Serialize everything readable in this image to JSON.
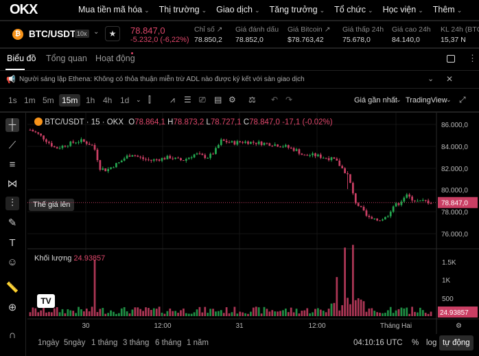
{
  "nav": {
    "logo": "OKX",
    "items": [
      "Mua tiền mã hóa",
      "Thị trường",
      "Giao dịch",
      "Tăng trưởng",
      "Tổ chức",
      "Học viện",
      "Thêm"
    ]
  },
  "ticker": {
    "pair": "BTC/USDT",
    "leverage": "10x",
    "price": "78.847,0",
    "change": "-5.232,0 (-6,22%)",
    "stats": [
      {
        "label": "Chỉ số ↗",
        "value": "78.850,2"
      },
      {
        "label": "Giá đánh dấu",
        "value": "78.852,0"
      },
      {
        "label": "Giá Bitcoin ↗",
        "value": "$78.763,42"
      },
      {
        "label": "Giá thấp 24h",
        "value": "75.678,0"
      },
      {
        "label": "Giá cao 24h",
        "value": "84.140,0"
      },
      {
        "label": "KL 24h (BTC)",
        "value": "15,37 N"
      }
    ]
  },
  "tabs": [
    "Biểu đồ",
    "Tổng quan",
    "Hoạt động"
  ],
  "announcement": "Người sáng lập Ethena: Không có thỏa thuận miễn trừ ADL nào được ký kết với sàn giao dịch",
  "timeframes": [
    "1s",
    "1m",
    "5m",
    "15m",
    "1h",
    "4h",
    "1d"
  ],
  "active_timeframe": "15m",
  "price_source": "Giá gần nhất",
  "chart_type": "TradingView",
  "tooltip": "Thế giá lên",
  "legend": {
    "symbol": "BTC/USDT · 15 · OKX",
    "o_label": "O",
    "o": "78.864,1",
    "h_label": "H",
    "h": "78.873,2",
    "l_label": "L",
    "l": "78.727,1",
    "c_label": "C",
    "c": "78.847,0",
    "chg": "-17,1 (-0.02%)"
  },
  "volume_legend": {
    "label": "Khối lượng",
    "value": "24.93857"
  },
  "colors": {
    "up": "#25a750",
    "down": "#ca3f64",
    "accent": "#e0476b"
  },
  "chart_data": {
    "type": "candlestick",
    "price_axis": {
      "ticks": [
        "86.000,0",
        "84.000,0",
        "82.000,0",
        "80.000,0",
        "78.000,0",
        "76.000,0"
      ],
      "range": [
        75000,
        87000
      ]
    },
    "last_price_label": "78.847,0",
    "volume_axis": {
      "ticks": [
        "1.5K",
        "1K",
        "500"
      ]
    },
    "last_volume_label": "24.93857",
    "x_ticks": [
      "30",
      "12:00",
      "31",
      "12:00",
      "Tháng Hai"
    ],
    "close_path": [
      85500,
      85200,
      84800,
      84300,
      83800,
      84000,
      84200,
      84400,
      84500,
      84300,
      84000,
      82000,
      81800,
      82200,
      82500,
      83000,
      83300,
      83000,
      82800,
      82700,
      82800,
      82900,
      83000,
      82800,
      82700,
      83000,
      83300,
      83100,
      83000,
      83500,
      84500,
      84400,
      84300,
      84400,
      84400,
      84350,
      84300,
      84250,
      84200,
      84100,
      84000,
      83800,
      83600,
      83100,
      83200,
      83150,
      83000,
      82900,
      82700,
      82000,
      81300,
      79000,
      78300,
      77500,
      77200,
      77300,
      77500,
      78500,
      78800,
      79500,
      79200,
      78900,
      79000,
      78850
    ]
  },
  "bottom": {
    "ranges": [
      "1ngày",
      "5ngày",
      "1 tháng",
      "3 tháng",
      "6 tháng",
      "1 năm"
    ],
    "time": "04:10:16 UTC",
    "percent": "%",
    "log": "log",
    "auto": "tự động"
  }
}
